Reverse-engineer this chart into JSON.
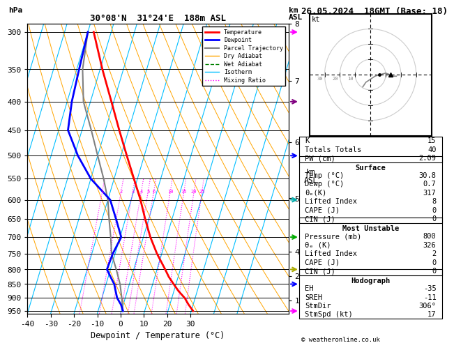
{
  "title_left": "30°08'N  31°24'E  188m ASL",
  "title_right": "26.05.2024  18GMT (Base: 18)",
  "xlabel": "Dewpoint / Temperature (°C)",
  "pressure_levels": [
    300,
    350,
    400,
    450,
    500,
    550,
    600,
    650,
    700,
    750,
    800,
    850,
    900,
    950
  ],
  "temp_profile": {
    "pressure": [
      950,
      925,
      900,
      875,
      850,
      825,
      800,
      750,
      700,
      650,
      600,
      550,
      500,
      450,
      400,
      350,
      300
    ],
    "temp": [
      30.8,
      28.0,
      25.5,
      22.0,
      19.0,
      16.0,
      13.5,
      8.0,
      3.0,
      -1.5,
      -6.0,
      -11.5,
      -17.5,
      -24.0,
      -31.0,
      -39.0,
      -47.5
    ]
  },
  "dewp_profile": {
    "pressure": [
      950,
      925,
      900,
      875,
      850,
      825,
      800,
      750,
      700,
      650,
      600,
      550,
      500,
      450,
      400,
      350,
      300
    ],
    "temp": [
      0.7,
      -1.0,
      -3.5,
      -5.0,
      -6.5,
      -9.0,
      -11.5,
      -11.0,
      -9.5,
      -14.0,
      -19.0,
      -30.0,
      -38.5,
      -46.0,
      -48.0,
      -49.0,
      -50.0
    ]
  },
  "parcel_profile": {
    "pressure": [
      950,
      900,
      850,
      800,
      750,
      700,
      650,
      600,
      550,
      500,
      450,
      400,
      350,
      300
    ],
    "temp": [
      0.7,
      -1.5,
      -4.0,
      -7.5,
      -11.5,
      -14.0,
      -17.0,
      -20.0,
      -24.5,
      -30.0,
      -36.0,
      -43.0,
      -47.5,
      -50.0
    ]
  },
  "temp_color": "#ff0000",
  "dewp_color": "#0000ff",
  "parcel_color": "#808080",
  "isotherm_color": "#00bfff",
  "dry_adiabat_color": "#ffa500",
  "wet_adiabat_color": "#008000",
  "mixing_ratio_color": "#ff00ff",
  "background_color": "#ffffff",
  "mixing_ratio_values": [
    1,
    2,
    3,
    4,
    5,
    6,
    10,
    15,
    20,
    25
  ],
  "km_pressures": [
    226,
    300,
    408,
    540,
    705,
    795,
    898
  ],
  "km_labels": [
    "8",
    "7",
    "6",
    "5",
    "4",
    "2",
    "1"
  ],
  "wind_barbs": [
    {
      "pressure": 300,
      "color": "#ff00ff",
      "type": "arrow_up"
    },
    {
      "pressure": 400,
      "color": "#9900cc",
      "type": "barb"
    },
    {
      "pressure": 500,
      "color": "#0000ff",
      "type": "arrow_right"
    },
    {
      "pressure": 600,
      "color": "#00cccc",
      "type": "barb"
    },
    {
      "pressure": 700,
      "color": "#00cc00",
      "type": "barb"
    },
    {
      "pressure": 800,
      "color": "#cccc00",
      "type": "barb"
    },
    {
      "pressure": 850,
      "color": "#0000ff",
      "type": "arrow_right"
    },
    {
      "pressure": 950,
      "color": "#ff00ff",
      "type": "barb"
    }
  ],
  "stats": {
    "K": 15,
    "Totals_Totals": 40,
    "PW_cm": 2.09,
    "Surface_Temp": 30.8,
    "Surface_Dewp": 0.7,
    "Surface_theta_e": 317,
    "Surface_LI": 8,
    "Surface_CAPE": 0,
    "Surface_CIN": 0,
    "MU_Pressure": 800,
    "MU_theta_e": 326,
    "MU_LI": 2,
    "MU_CAPE": 0,
    "MU_CIN": 0,
    "Hodo_EH": -35,
    "Hodo_SREH": -11,
    "Hodo_StmDir": "306°",
    "Hodo_StmSpd": 17
  },
  "legend_entries": [
    {
      "label": "Temperature",
      "color": "#ff0000",
      "lw": 2,
      "ls": "-"
    },
    {
      "label": "Dewpoint",
      "color": "#0000ff",
      "lw": 2,
      "ls": "-"
    },
    {
      "label": "Parcel Trajectory",
      "color": "#808080",
      "lw": 1.5,
      "ls": "-"
    },
    {
      "label": "Dry Adiabat",
      "color": "#ffa500",
      "lw": 1,
      "ls": "-"
    },
    {
      "label": "Wet Adiabat",
      "color": "#008000",
      "lw": 1,
      "ls": "--"
    },
    {
      "label": "Isotherm",
      "color": "#00bfff",
      "lw": 1,
      "ls": "-"
    },
    {
      "label": "Mixing Ratio",
      "color": "#ff00ff",
      "lw": 1,
      "ls": ":"
    }
  ]
}
